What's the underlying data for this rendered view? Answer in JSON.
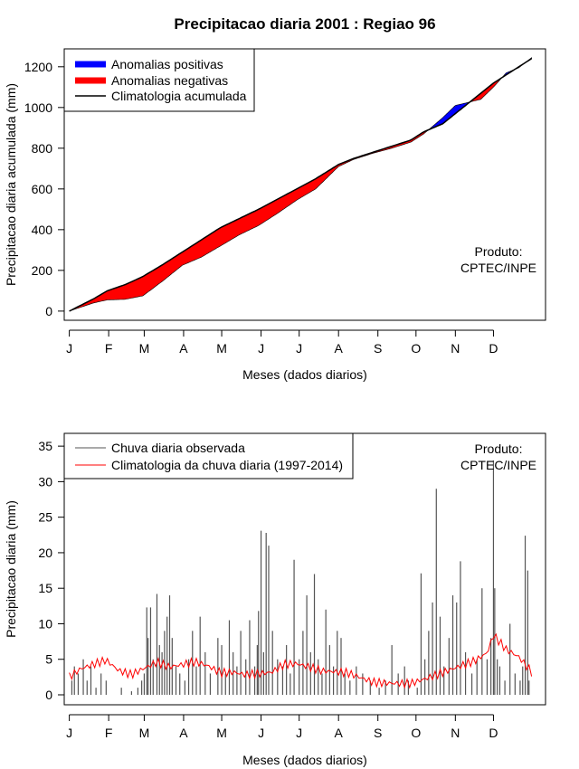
{
  "chart_data": [
    {
      "type": "area",
      "title": "Precipitacao diaria 2001 : Regiao 96",
      "xlabel": "Meses (dados diarios)",
      "ylabel": "Precipitacao diaria acumulada (mm)",
      "xlim": [
        1,
        365
      ],
      "ylim": [
        0,
        1240
      ],
      "month_labels": [
        "J",
        "F",
        "M",
        "A",
        "M",
        "J",
        "J",
        "A",
        "S",
        "O",
        "N",
        "D"
      ],
      "month_days": [
        1,
        32,
        60,
        91,
        121,
        152,
        182,
        213,
        244,
        274,
        305,
        335
      ],
      "yticks": [
        0,
        200,
        400,
        600,
        800,
        1000,
        1200
      ],
      "days": [
        1,
        20,
        31,
        45,
        59,
        75,
        90,
        105,
        120,
        135,
        150,
        165,
        180,
        195,
        213,
        225,
        240,
        255,
        270,
        280,
        295,
        305,
        315,
        325,
        335,
        345,
        355,
        365
      ],
      "climatology_accumulated": [
        0,
        60,
        100,
        130,
        170,
        230,
        290,
        350,
        410,
        455,
        500,
        550,
        600,
        650,
        720,
        750,
        780,
        810,
        840,
        880,
        920,
        970,
        1020,
        1070,
        1120,
        1160,
        1200,
        1240
      ],
      "observed_accumulated": [
        0,
        40,
        55,
        58,
        75,
        150,
        225,
        265,
        320,
        375,
        420,
        480,
        545,
        600,
        710,
        745,
        775,
        800,
        830,
        870,
        950,
        1010,
        1025,
        1040,
        1100,
        1170,
        1195,
        1245
      ],
      "legend": {
        "position": "top-left",
        "entries": [
          {
            "label": "Anomalias positivas",
            "color": "#0000ff"
          },
          {
            "label": "Anomalias negativas",
            "color": "#ff0000"
          },
          {
            "label": "Climatologia acumulada",
            "color": "#000000"
          }
        ]
      },
      "annotation": [
        "Produto:",
        "CPTEC/INPE"
      ]
    },
    {
      "type": "bar",
      "xlabel": "Meses (dados diarios)",
      "ylabel": "Precipitacao diaria (mm)",
      "xlim": [
        1,
        365
      ],
      "ylim": [
        0,
        35
      ],
      "month_labels": [
        "J",
        "F",
        "M",
        "A",
        "M",
        "J",
        "J",
        "A",
        "S",
        "O",
        "N",
        "D"
      ],
      "month_days": [
        1,
        32,
        60,
        91,
        121,
        152,
        182,
        213,
        244,
        274,
        305,
        335
      ],
      "yticks": [
        0,
        5,
        10,
        15,
        20,
        25,
        30,
        35
      ],
      "daily_observed": {
        "days": [
          3,
          5,
          8,
          12,
          15,
          18,
          22,
          26,
          30,
          42,
          50,
          55,
          58,
          60,
          62,
          63,
          65,
          67,
          70,
          72,
          74,
          76,
          78,
          80,
          82,
          85,
          88,
          92,
          95,
          98,
          101,
          104,
          108,
          112,
          118,
          121,
          124,
          127,
          130,
          133,
          136,
          140,
          143,
          147,
          149,
          150,
          152,
          154,
          156,
          158,
          161,
          165,
          169,
          172,
          175,
          178,
          182,
          185,
          188,
          191,
          194,
          197,
          200,
          203,
          206,
          209,
          212,
          215,
          218,
          222,
          227,
          232,
          238,
          245,
          250,
          255,
          260,
          265,
          268,
          275,
          278,
          281,
          284,
          287,
          290,
          293,
          296,
          300,
          303,
          306,
          309,
          313,
          318,
          322,
          326,
          330,
          333,
          335,
          336,
          338,
          340,
          344,
          348,
          352,
          356,
          358,
          360,
          362,
          363
        ],
        "values": [
          2,
          4,
          3,
          5,
          2,
          4,
          1,
          3,
          2,
          1,
          0.5,
          1,
          2,
          3,
          12.3,
          8,
          12.3,
          5,
          14.2,
          7,
          6,
          9,
          11,
          14,
          8,
          4,
          3,
          2,
          5,
          9,
          4,
          11,
          6,
          3,
          8,
          7,
          3,
          10.5,
          6,
          4,
          9,
          5,
          10.5,
          4,
          7,
          11.8,
          23.1,
          6,
          22.8,
          21,
          9,
          5,
          4,
          7,
          3,
          19,
          5,
          9,
          14,
          6,
          17,
          5,
          3,
          12,
          7,
          4,
          9,
          8,
          3,
          2,
          4,
          3,
          2,
          1,
          2,
          7,
          3,
          4,
          2,
          1,
          17.1,
          5,
          9,
          13,
          29,
          11,
          4,
          8,
          14,
          13,
          18.8,
          6,
          3,
          5,
          15,
          5,
          8,
          33,
          15,
          5,
          4,
          2,
          10,
          3,
          2,
          4,
          22.4,
          17.5,
          2
        ]
      },
      "climatology_daily": {
        "days": [
          1,
          10,
          20,
          30,
          40,
          50,
          60,
          70,
          80,
          90,
          100,
          110,
          120,
          130,
          140,
          150,
          160,
          170,
          180,
          190,
          200,
          210,
          220,
          230,
          240,
          250,
          260,
          270,
          280,
          290,
          300,
          310,
          320,
          330,
          335,
          340,
          345,
          350,
          355,
          360,
          365
        ],
        "values": [
          2.5,
          3.5,
          4,
          4.5,
          3,
          2.5,
          3.5,
          4.5,
          4,
          4.5,
          5,
          4.5,
          3.5,
          3.5,
          3,
          3,
          3,
          4,
          4,
          3.5,
          3,
          3,
          3,
          2.5,
          2,
          2,
          2,
          2,
          2.5,
          3,
          3.5,
          4,
          4.5,
          5.5,
          8,
          7,
          6,
          5.5,
          5,
          4,
          3
        ]
      },
      "legend": {
        "position": "top-left",
        "entries": [
          {
            "label": "Chuva diaria observada",
            "color": "#555555"
          },
          {
            "label": "Climatologia da chuva diaria (1997-2014)",
            "color": "#ff0000"
          }
        ]
      },
      "annotation": [
        "Produto:",
        "CPTEC/INPE"
      ]
    }
  ]
}
